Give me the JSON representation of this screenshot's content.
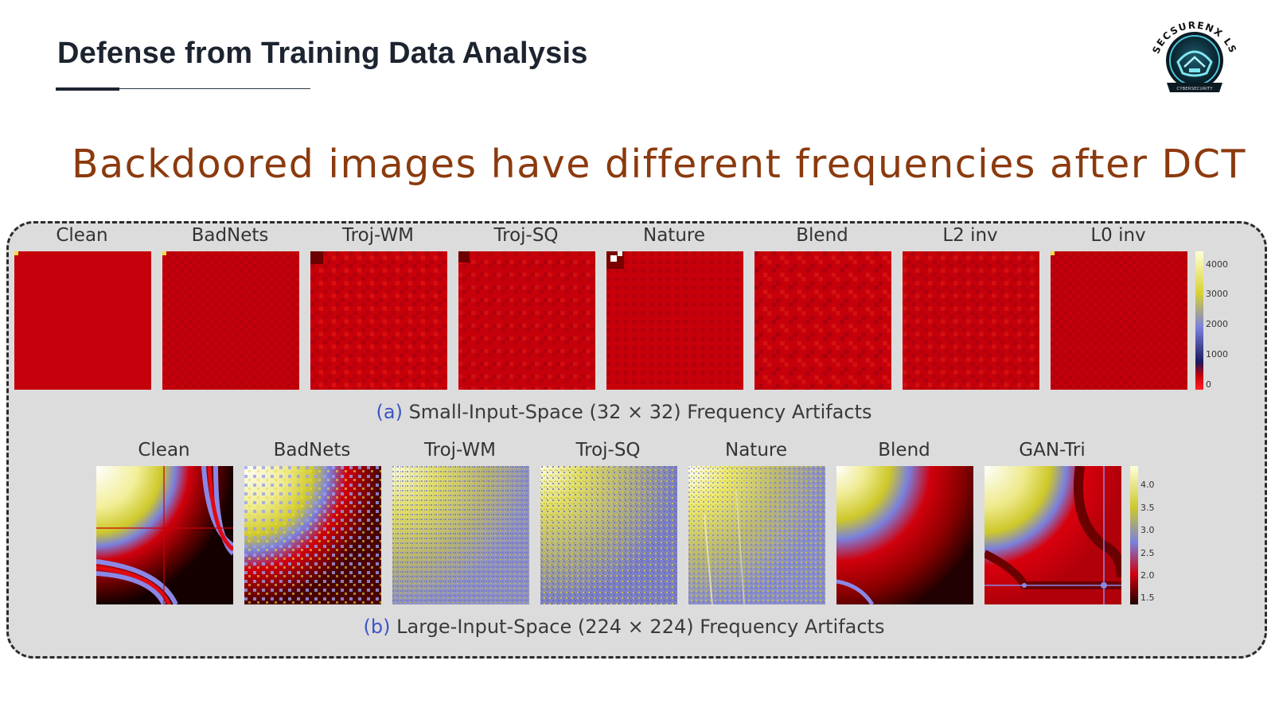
{
  "slide": {
    "title": "Defense from Training Data Analysis",
    "headline": "Backdoored images have different frequencies after DCT",
    "logo_text": "SECSURENX LS",
    "logo_subtext": "CYBERSECURITY"
  },
  "figure": {
    "row_a": {
      "labels": [
        "Clean",
        "BadNets",
        "Troj-WM",
        "Troj-SQ",
        "Nature",
        "Blend",
        "L2 inv",
        "L0 inv"
      ],
      "caption_tag": "(a)",
      "caption_text": " Small-Input-Space (32 × 32) Frequency Artifacts",
      "colorbar_ticks": [
        "4000",
        "3000",
        "2000",
        "1000",
        "0"
      ]
    },
    "row_b": {
      "labels": [
        "Clean",
        "BadNets",
        "Troj-WM",
        "Troj-SQ",
        "Nature",
        "Blend",
        "GAN-Tri"
      ],
      "caption_tag": "(b)",
      "caption_text": " Large-Input-Space (224 × 224) Frequency Artifacts",
      "colorbar_ticks": [
        "4.0",
        "3.5",
        "3.0",
        "2.5",
        "2.0",
        "1.5"
      ]
    },
    "colors": {
      "red": "#c8000a",
      "yellow": "#d8d231",
      "blue": "#7a80dd",
      "dark": "#3a0000"
    }
  }
}
